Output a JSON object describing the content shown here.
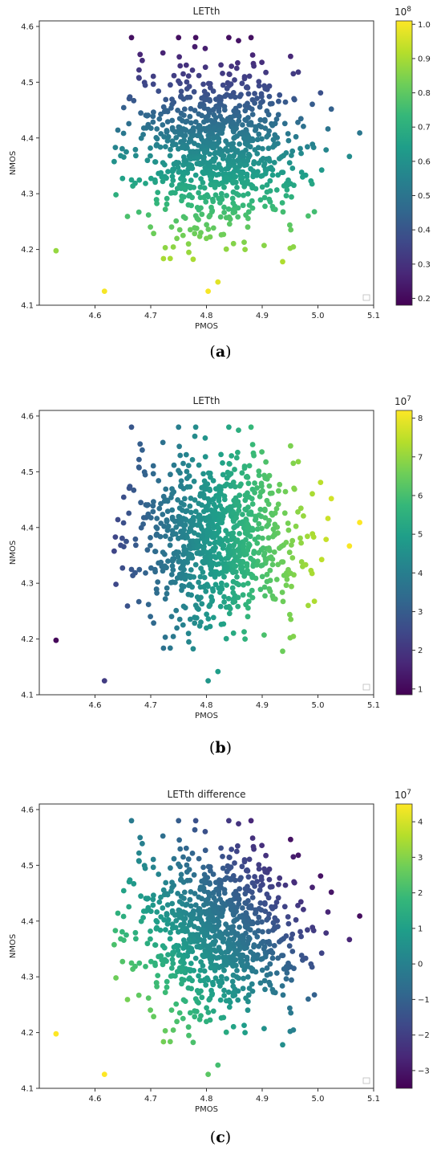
{
  "colormap": [
    "#440154",
    "#482878",
    "#3e4989",
    "#31688e",
    "#26828e",
    "#1f9e89",
    "#35b779",
    "#6ece58",
    "#b5de2b",
    "#fde725"
  ],
  "point_count": 900,
  "chart_data": [
    {
      "type": "scatter",
      "title": "LETth",
      "xlabel": "PMOS",
      "ylabel": "NMOS",
      "xlim": [
        4.5,
        5.1
      ],
      "ylim": [
        4.1,
        4.61
      ],
      "xticks": [
        "4.6",
        "4.7",
        "4.8",
        "4.9",
        "5.0",
        "5.1"
      ],
      "yticks": [
        "4.1",
        "4.2",
        "4.3",
        "4.4",
        "4.5",
        "4.6"
      ],
      "colorbar": {
        "exponent": "10^8",
        "min": 0.18,
        "max": 1.01,
        "ticks": [
          "0.2",
          "0.3",
          "0.4",
          "0.5",
          "0.6",
          "0.7",
          "0.8",
          "0.9",
          "1.0"
        ]
      },
      "color_trend": "increases toward lower NMOS",
      "caption": "(a)"
    },
    {
      "type": "scatter",
      "title": "LETth",
      "xlabel": "PMOS",
      "ylabel": "NMOS",
      "xlim": [
        4.5,
        5.1
      ],
      "ylim": [
        4.1,
        4.61
      ],
      "xticks": [
        "4.6",
        "4.7",
        "4.8",
        "4.9",
        "5.0",
        "5.1"
      ],
      "yticks": [
        "4.1",
        "4.2",
        "4.3",
        "4.4",
        "4.5",
        "4.6"
      ],
      "colorbar": {
        "exponent": "10^7",
        "min": 0.85,
        "max": 8.2,
        "ticks": [
          "1",
          "2",
          "3",
          "4",
          "5",
          "6",
          "7",
          "8"
        ]
      },
      "color_trend": "increases toward higher PMOS",
      "caption": "(b)"
    },
    {
      "type": "scatter",
      "title": "LETth difference",
      "xlabel": "PMOS",
      "ylabel": "NMOS",
      "xlim": [
        4.5,
        5.1
      ],
      "ylim": [
        4.1,
        4.61
      ],
      "xticks": [
        "4.6",
        "4.7",
        "4.8",
        "4.9",
        "5.0",
        "5.1"
      ],
      "yticks": [
        "4.1",
        "4.2",
        "4.3",
        "4.4",
        "4.5",
        "4.6"
      ],
      "colorbar": {
        "exponent": "10^7",
        "min": -3.5,
        "max": 4.5,
        "ticks": [
          "−3",
          "−2",
          "−1",
          "0",
          "1",
          "2",
          "3",
          "4"
        ]
      },
      "color_trend": "increases toward lower PMOS and lower NMOS",
      "caption": "(c)"
    }
  ],
  "captions": [
    {
      "open": "(",
      "letter": "a",
      "close": ")"
    },
    {
      "open": "(",
      "letter": "b",
      "close": ")"
    },
    {
      "open": "(",
      "letter": "c",
      "close": ")"
    }
  ]
}
